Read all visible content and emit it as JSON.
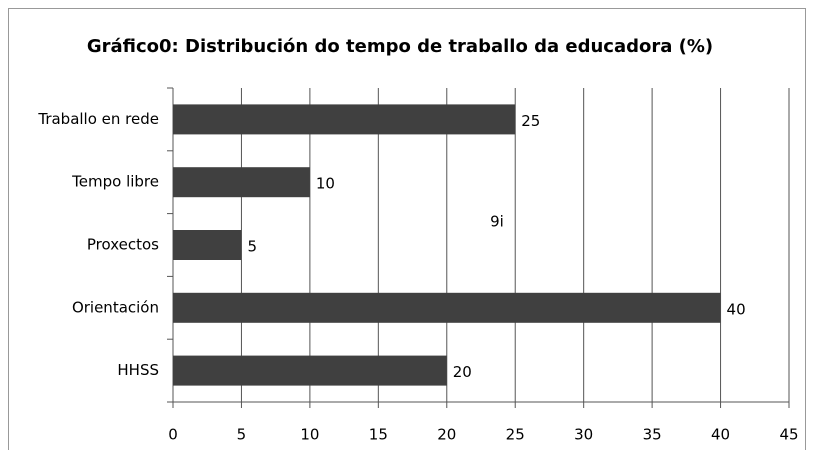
{
  "chart_data": {
    "type": "hbar",
    "title": "Gráfico0: Distribución do tempo de traballo da educadora (%)",
    "annotations": [
      "9i"
    ],
    "categories": [
      "Traballo en rede",
      "Tempo libre",
      "Proxectos",
      "Orientación",
      "HHSS"
    ],
    "values": [
      25,
      10,
      5,
      40,
      20
    ],
    "color": "#404040",
    "xlim": [
      0,
      45
    ],
    "xticks": [
      0,
      5,
      10,
      15,
      20,
      25,
      30,
      35,
      40,
      45
    ],
    "grid": true
  }
}
